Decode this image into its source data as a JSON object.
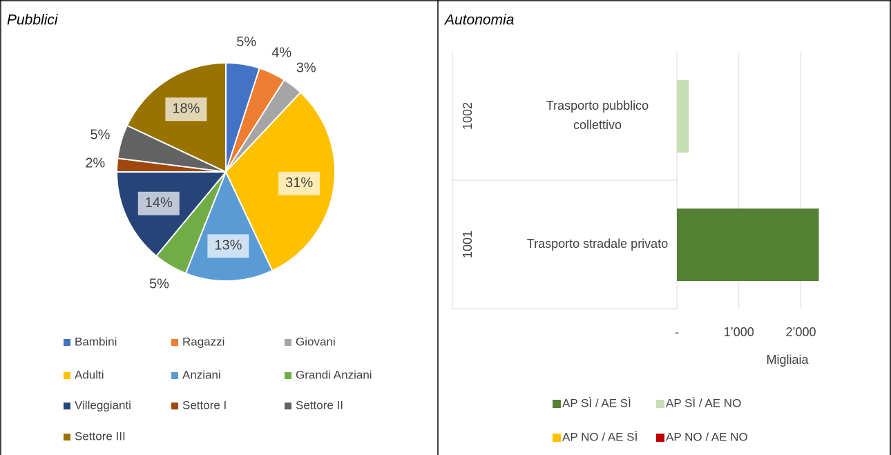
{
  "chart_data": [
    {
      "type": "pie",
      "title": "Pubblici",
      "categories": [
        "Bambini",
        "Ragazzi",
        "Giovani",
        "Adulti",
        "Anziani",
        "Grandi Anziani",
        "Villeggianti",
        "Settore I",
        "Settore II",
        "Settore III"
      ],
      "values": [
        5,
        4,
        3,
        31,
        13,
        5,
        14,
        2,
        5,
        18
      ],
      "value_labels": [
        "5%",
        "4%",
        "3%",
        "31%",
        "13%",
        "5%",
        "14%",
        "2%",
        "5%",
        "18%"
      ],
      "colors": [
        "#4472c4",
        "#ed7d31",
        "#a5a5a5",
        "#ffc000",
        "#5b9bd5",
        "#70ad47",
        "#264478",
        "#9e480e",
        "#636363",
        "#997300"
      ],
      "legend": "bottom"
    },
    {
      "type": "stacked-hbar",
      "title": "Autonomia",
      "groups": [
        "1002",
        "1001"
      ],
      "categories": [
        "Trasporto pubblico collettivo",
        "Trasporto stradale privato"
      ],
      "series": [
        {
          "name": "AP SÌ / AE SÌ",
          "color": "#548235",
          "values": [
            0,
            2290
          ]
        },
        {
          "name": "AP SÌ / AE NO",
          "color": "#c5e0b4",
          "values": [
            190,
            0
          ]
        },
        {
          "name": "AP NO / AE SÌ",
          "color": "#ffc000",
          "values": [
            0,
            0
          ]
        },
        {
          "name": "AP NO / AE NO",
          "color": "#c00000",
          "values": [
            0,
            0
          ]
        }
      ],
      "xlim": [
        0,
        2340
      ],
      "xticks": [
        {
          "value": 0,
          "label": "-"
        },
        {
          "value": 1000,
          "label": "1’000"
        },
        {
          "value": 2000,
          "label": "2’000"
        }
      ],
      "x_label": "Migliaia",
      "grid": true,
      "legend": "bottom"
    }
  ]
}
